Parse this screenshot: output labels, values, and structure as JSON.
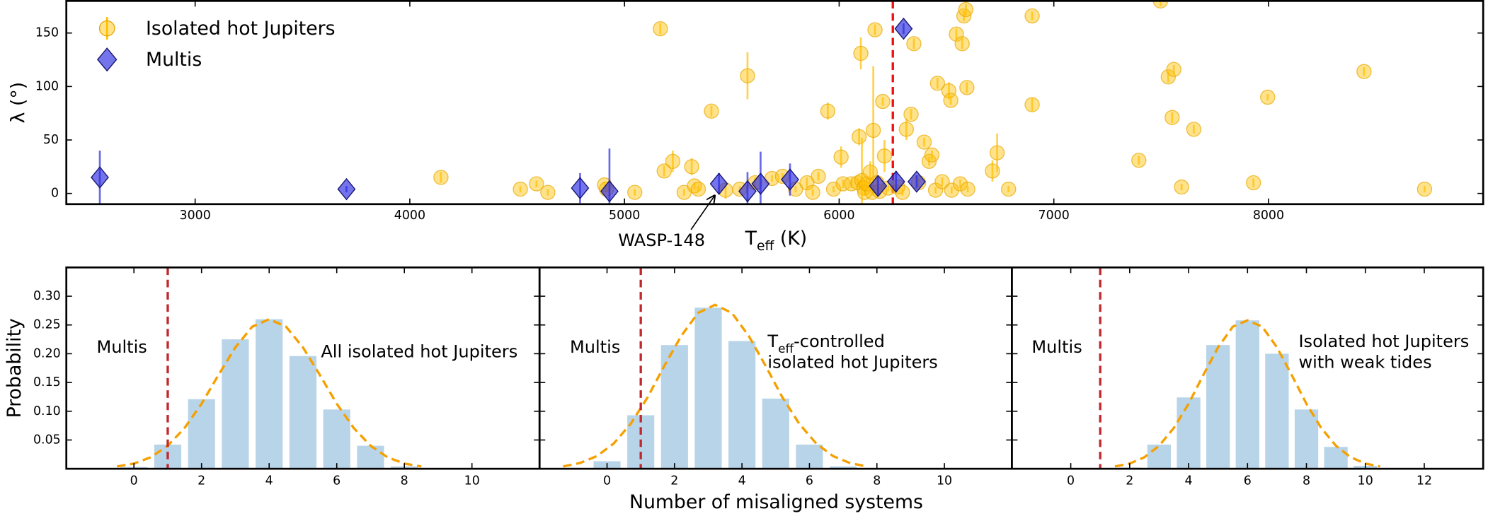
{
  "chart_data": [
    {
      "type": "scatter",
      "xlabel": [
        "T",
        "eff",
        " (K)"
      ],
      "ylabel": "λ (°)",
      "xlim": [
        2400,
        9000
      ],
      "ylim": [
        -10,
        180
      ],
      "xticks": [
        3000,
        4000,
        5000,
        6000,
        7000,
        8000
      ],
      "yticks": [
        0,
        50,
        100,
        150
      ],
      "vline": {
        "x": 6250,
        "color": "#ee1111"
      },
      "annotation": "WASP-148",
      "series": [
        {
          "name": "Isolated hot Jupiters",
          "color": "#ffbf00",
          "marker": "circle",
          "x": [
            4145,
            4515,
            4590,
            4643,
            4907,
            4916,
            5048,
            5167,
            5185,
            5225,
            5278,
            5313,
            5326,
            5344,
            5405,
            5471,
            5537,
            5573,
            5608,
            5687,
            5736,
            5797,
            5850,
            5877,
            5903,
            5947,
            5974,
            6009,
            6018,
            6057,
            6088,
            6093,
            6101,
            6106,
            6115,
            6119,
            6128,
            6145,
            6154,
            6159,
            6167,
            6176,
            6189,
            6203,
            6211,
            6229,
            6273,
            6295,
            6313,
            6335,
            6348,
            6370,
            6396,
            6419,
            6432,
            6449,
            6458,
            6480,
            6511,
            6520,
            6524,
            6546,
            6564,
            6573,
            6581,
            6590,
            6595,
            6599,
            6714,
            6736,
            6789,
            6899,
            6899,
            7396,
            7497,
            7533,
            7551,
            7559,
            7595,
            7652,
            7930,
            7996,
            8445,
            8727
          ],
          "values": [
            15,
            4,
            9,
            1,
            8,
            4,
            1,
            154,
            21,
            30,
            1,
            25,
            7,
            4,
            77,
            3,
            4,
            110,
            10,
            14,
            16,
            4,
            10,
            1,
            16,
            77,
            4,
            34,
            9,
            9,
            10,
            53,
            131,
            12,
            5,
            1,
            9,
            20,
            1,
            59,
            153,
            10,
            2,
            86,
            35,
            5,
            6,
            1,
            60,
            74,
            140,
            10,
            48,
            30,
            36,
            3,
            103,
            11,
            96,
            87,
            3,
            149,
            9,
            140,
            166,
            172,
            99,
            4,
            21,
            38,
            4,
            166,
            83,
            31,
            180,
            109,
            71,
            116,
            6,
            60,
            10,
            90,
            114,
            4
          ],
          "errors": [
            5,
            3,
            3,
            3,
            3,
            3,
            3,
            5,
            5,
            10,
            3,
            8,
            3,
            3,
            5,
            8,
            3,
            22,
            5,
            3,
            3,
            3,
            5,
            3,
            4,
            8,
            3,
            10,
            4,
            4,
            4,
            8,
            15,
            40,
            3,
            3,
            5,
            10,
            3,
            60,
            5,
            5,
            4,
            4,
            15,
            3,
            3,
            3,
            10,
            5,
            5,
            4,
            4,
            4,
            4,
            3,
            5,
            4,
            8,
            4,
            3,
            5,
            4,
            5,
            5,
            5,
            5,
            3,
            10,
            18,
            3,
            4,
            6,
            4,
            5,
            5,
            5,
            4,
            3,
            4,
            4,
            3,
            4,
            3
          ]
        },
        {
          "name": "Multis",
          "color": "#2a2ae0",
          "marker": "diamond",
          "x": [
            2556,
            3705,
            4793,
            4930,
            5440,
            5573,
            5634,
            5771,
            6181,
            6265,
            6300,
            6361
          ],
          "values": [
            15,
            4,
            5,
            2,
            9,
            2,
            9,
            13,
            7,
            11,
            154,
            11
          ],
          "errors": [
            25,
            3,
            14,
            40,
            10,
            18,
            30,
            15,
            8,
            10,
            5,
            6
          ]
        }
      ]
    },
    {
      "type": "bar",
      "ylabel": "Probability",
      "xlim": [
        -2,
        12
      ],
      "ylim": [
        0,
        0.35
      ],
      "xticks": [
        0,
        2,
        4,
        6,
        8,
        10
      ],
      "yticks": [
        {
          "value": 0.05,
          "label": "0.05"
        },
        {
          "value": 0.1,
          "label": "0.10"
        },
        {
          "value": 0.15,
          "label": "0.15"
        },
        {
          "value": 0.2,
          "label": "0.20"
        },
        {
          "value": 0.25,
          "label": "0.25"
        },
        {
          "value": 0.3,
          "label": "0.30"
        }
      ],
      "color": "#b8d4e8",
      "x": [
        0,
        1,
        2,
        3,
        4,
        5,
        6,
        7,
        8
      ],
      "values": [
        0.003,
        0.042,
        0.121,
        0.225,
        0.26,
        0.196,
        0.103,
        0.04,
        0.004
      ],
      "curve": {
        "color": "#f5a000",
        "x": [
          -0.5,
          0,
          0.5,
          1,
          1.5,
          2,
          2.5,
          3,
          3.5,
          4,
          4.5,
          5,
          5.5,
          6,
          6.5,
          7,
          7.5,
          8,
          8.5
        ],
        "values": [
          0.004,
          0.009,
          0.02,
          0.04,
          0.071,
          0.113,
          0.163,
          0.211,
          0.247,
          0.26,
          0.247,
          0.211,
          0.163,
          0.113,
          0.071,
          0.04,
          0.02,
          0.009,
          0.004
        ]
      },
      "vline": {
        "x": 1,
        "color": "#c0282d"
      },
      "annotations": [
        [
          "Multis"
        ],
        [
          "All isolated hot Jupiters"
        ]
      ]
    },
    {
      "type": "bar",
      "xlabel": "Number of misaligned systems",
      "xlim": [
        -2,
        12
      ],
      "ylim": [
        0,
        0.35
      ],
      "xticks": [
        0,
        2,
        4,
        6,
        8,
        10
      ],
      "color": "#b8d4e8",
      "x": [
        0,
        1,
        2,
        3,
        4,
        5,
        6,
        7
      ],
      "values": [
        0.013,
        0.093,
        0.215,
        0.28,
        0.222,
        0.122,
        0.042,
        0.004
      ],
      "curve": {
        "color": "#f5a000",
        "x": [
          -1.3,
          -0.8,
          -0.3,
          0.2,
          0.7,
          1.2,
          1.7,
          2.2,
          2.7,
          3.2,
          3.7,
          4.2,
          4.7,
          5.2,
          5.7,
          6.2,
          6.7,
          7.2,
          7.7
        ],
        "values": [
          0.004,
          0.01,
          0.022,
          0.044,
          0.078,
          0.124,
          0.179,
          0.231,
          0.271,
          0.285,
          0.271,
          0.231,
          0.179,
          0.124,
          0.078,
          0.044,
          0.022,
          0.01,
          0.004
        ]
      },
      "vline": {
        "x": 1,
        "color": "#c0282d"
      },
      "annotations": [
        [
          "Multis"
        ],
        [
          [
            "T",
            "eff",
            "-controlled"
          ],
          " isolated hot Jupiters"
        ]
      ]
    },
    {
      "type": "bar",
      "xlim": [
        -2,
        14
      ],
      "ylim": [
        0,
        0.35
      ],
      "xticks": [
        0,
        2,
        4,
        6,
        8,
        10,
        12
      ],
      "color": "#b8d4e8",
      "x": [
        2,
        3,
        4,
        5,
        6,
        7,
        8,
        9,
        10
      ],
      "values": [
        0.002,
        0.042,
        0.124,
        0.215,
        0.258,
        0.2,
        0.103,
        0.038,
        0.005
      ],
      "curve": {
        "color": "#f5a000",
        "x": [
          1.5,
          2,
          2.5,
          3,
          3.5,
          4,
          4.5,
          5,
          5.5,
          6,
          6.5,
          7,
          7.5,
          8,
          8.5,
          9,
          9.5,
          10,
          10.5
        ],
        "values": [
          0.004,
          0.009,
          0.02,
          0.04,
          0.071,
          0.113,
          0.163,
          0.211,
          0.247,
          0.258,
          0.247,
          0.211,
          0.163,
          0.113,
          0.071,
          0.04,
          0.02,
          0.009,
          0.004
        ]
      },
      "vline": {
        "x": 1,
        "color": "#c0282d"
      },
      "annotations": [
        [
          "Multis"
        ],
        [
          "Isolated hot Jupiters",
          "with weak tides"
        ]
      ]
    }
  ]
}
